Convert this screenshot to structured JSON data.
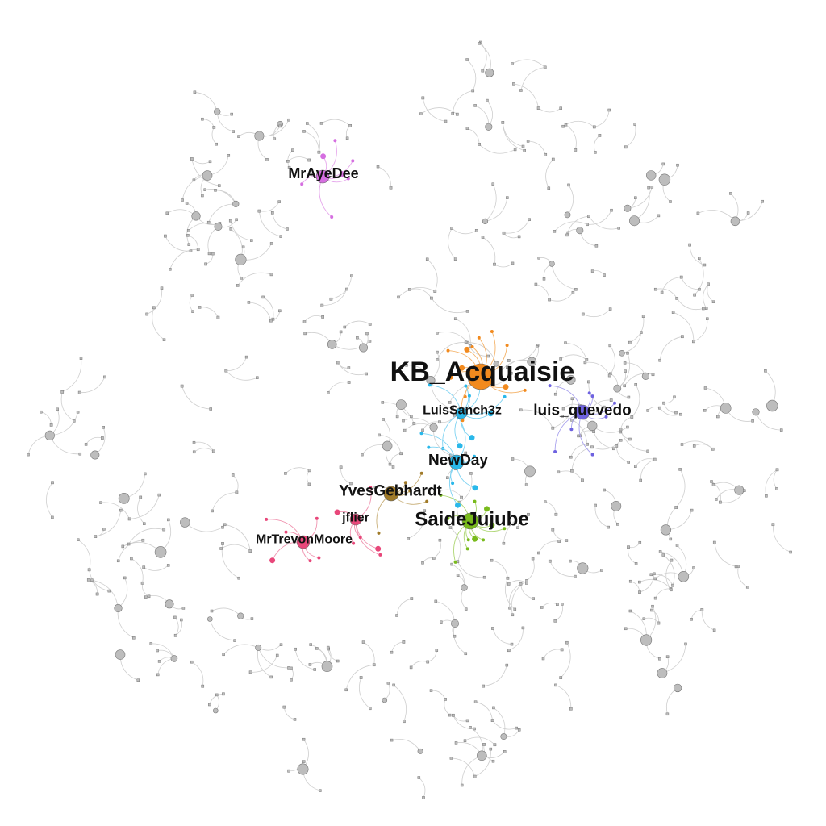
{
  "graph": {
    "hubs": [
      {
        "id": "kb",
        "label": "KB_Acquaisie",
        "color": "#f28a1e",
        "edge_color": "#f4b36a",
        "spokes": 12
      },
      {
        "id": "luissanch",
        "label": "LuisSanch3z",
        "color": "#29b8ea",
        "edge_color": "#7fd3f2",
        "spokes": 9
      },
      {
        "id": "quevedo",
        "label": "luis_quevedo",
        "color": "#6e62e0",
        "edge_color": "#a9a2ee",
        "spokes": 8
      },
      {
        "id": "newday",
        "label": "NewDay",
        "color": "#29b8ea",
        "edge_color": "#7fd3f2",
        "spokes": 7
      },
      {
        "id": "yves",
        "label": "YvesGebhardt",
        "color": "#a07a28",
        "edge_color": "#c9b07a",
        "spokes": 5
      },
      {
        "id": "saide",
        "label": "SaideJujube",
        "color": "#79bb1c",
        "edge_color": "#aed673",
        "spokes": 11
      },
      {
        "id": "jflier",
        "label": "jflier",
        "color": "#e8477a",
        "edge_color": "#f095b1",
        "spokes": 6
      },
      {
        "id": "trevon",
        "label": "MrTrevonMoore",
        "color": "#e8477a",
        "edge_color": "#f095b1",
        "spokes": 6
      },
      {
        "id": "aye",
        "label": "MrAyeDee",
        "color": "#d56ee0",
        "edge_color": "#e6a8ec",
        "spokes": 7
      }
    ],
    "background": {
      "node_color": "#bdbdbd",
      "edge_color": "#cfcfcf",
      "cluster_count": 230
    }
  }
}
